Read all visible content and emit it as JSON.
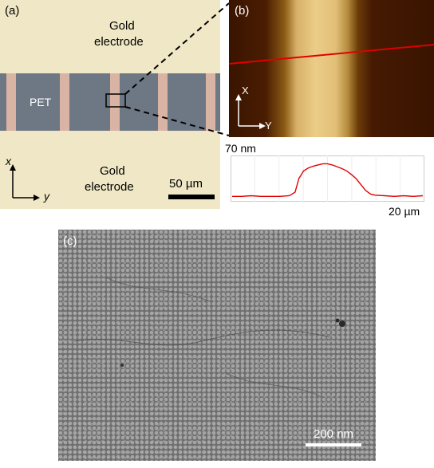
{
  "panel_a": {
    "label": "(a)",
    "top_region": "Gold\nelectrode",
    "top_line1": "Gold",
    "top_line2": "electrode",
    "channel_label": "PET",
    "bottom_line1": "Gold",
    "bottom_line2": "electrode",
    "axis_x": "x",
    "axis_y": "y",
    "scalebar": "50 µm",
    "colors": {
      "gold": "#efe7c5",
      "channel": "#6e7884",
      "stripe": "#d9b3a3"
    }
  },
  "panel_b": {
    "label": "(b)",
    "axis_x": "X",
    "axis_y": "Y",
    "profile_top": "70 nm",
    "profile_right": "20 µm",
    "colors": {
      "afm_dark": "#3a1400",
      "afm_bright": "#e8c47a",
      "profile_line": "#e00000"
    }
  },
  "panel_c": {
    "label": "(c)",
    "scalebar": "200 nm",
    "colors": {
      "sem_base": "#8a8a8a"
    }
  },
  "chart_data": {
    "type": "line",
    "title": "",
    "xlabel": "",
    "ylabel": "",
    "x_max_label": "20 µm",
    "y_max_label": "70 nm",
    "xlim": [
      0,
      20
    ],
    "ylim": [
      0,
      70
    ],
    "series": [
      {
        "x": [
          0,
          1,
          2,
          3,
          4,
          5,
          6,
          6.6,
          7,
          7.5,
          8,
          8.5,
          9,
          9.5,
          10,
          10.5,
          11,
          11.5,
          12,
          12.5,
          13,
          13.5,
          14,
          14.5,
          15,
          16,
          17,
          18,
          19,
          20
        ],
        "values": [
          5,
          5,
          6,
          5,
          5,
          5,
          6,
          12,
          35,
          48,
          53,
          56,
          58,
          60,
          60,
          58,
          55,
          52,
          48,
          42,
          35,
          25,
          15,
          9,
          7,
          6,
          5,
          6,
          5,
          6
        ]
      }
    ]
  }
}
